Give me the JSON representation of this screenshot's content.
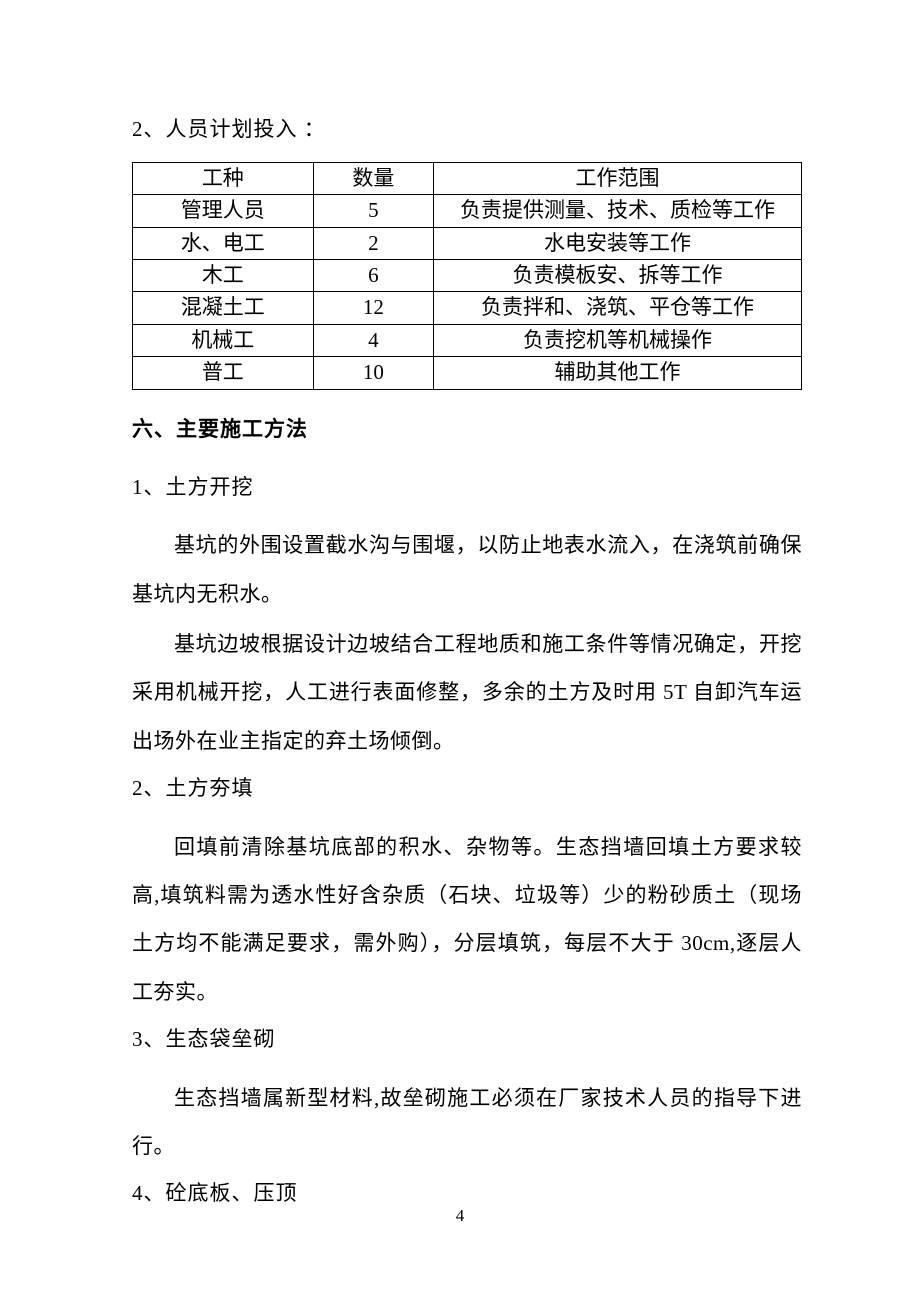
{
  "intro": "2、人员计划投入 ：",
  "table": {
    "headers": {
      "c1": "工种",
      "c2": "数量",
      "c3": "工作范围"
    },
    "rows": [
      {
        "c1": "管理人员",
        "c2": "5",
        "c3": "负责提供测量、技术、质检等工作"
      },
      {
        "c1": "水、电工",
        "c2": "2",
        "c3": "水电安装等工作"
      },
      {
        "c1": "木工",
        "c2": "6",
        "c3": "负责模板安、拆等工作"
      },
      {
        "c1": "混凝土工",
        "c2": "12",
        "c3": "负责拌和、浇筑、平仓等工作"
      },
      {
        "c1": "机械工",
        "c2": "4",
        "c3": "负责挖机等机械操作"
      },
      {
        "c1": "普工",
        "c2": "10",
        "c3": "辅助其他工作"
      }
    ]
  },
  "heading6": "六、主要施工方法",
  "sec1": {
    "title": "1、土方开挖",
    "p1": "基坑的外围设置截水沟与围堰，以防止地表水流入，在浇筑前确保基坑内无积水。",
    "p2": "基坑边坡根据设计边坡结合工程地质和施工条件等情况确定，开挖采用机械开挖，人工进行表面修整，多余的土方及时用 5T 自卸汽车运出场外在业主指定的弃土场倾倒。"
  },
  "sec2": {
    "title": "2、土方夯填",
    "p1": "回填前清除基坑底部的积水、杂物等。生态挡墙回填土方要求较高,填筑料需为透水性好含杂质（石块、垃圾等）少的粉砂质土（现场土方均不能满足要求，需外购），分层填筑，每层不大于 30cm,逐层人工夯实。"
  },
  "sec3": {
    "title": "3、生态袋垒砌",
    "p1": "生态挡墙属新型材料,故垒砌施工必须在厂家技术人员的指导下进行。"
  },
  "sec4": {
    "title": "4、砼底板、压顶"
  },
  "pageNumber": "4"
}
